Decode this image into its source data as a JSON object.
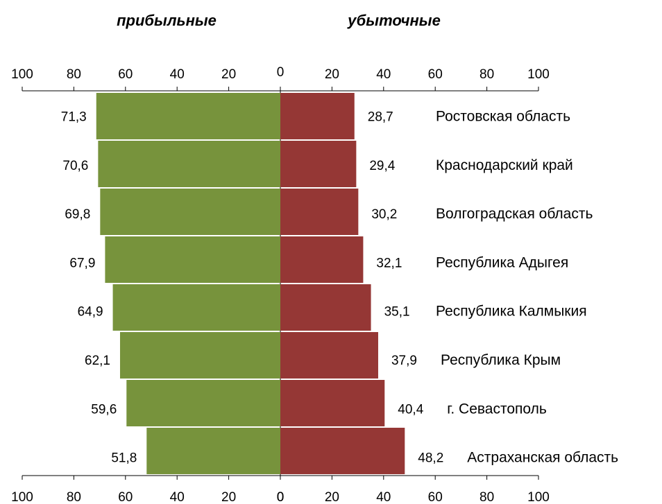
{
  "chart_data": {
    "type": "bar",
    "orientation": "horizontal-diverging",
    "left_header": "прибыльные",
    "right_header": "убыточные",
    "categories": [
      "Ростовская область",
      "Краснодарский край",
      "Волгоградская область",
      "Республика Адыгея",
      "Республика Калмыкия",
      "Республика Крым",
      "г. Севастополь",
      "Астраханская область"
    ],
    "series": [
      {
        "name": "прибыльные",
        "color": "#77933c",
        "values": [
          71.3,
          70.6,
          69.8,
          67.9,
          64.9,
          62.1,
          59.6,
          51.8
        ],
        "labels": [
          "71,3",
          "70,6",
          "69,8",
          "67,9",
          "64,9",
          "62,1",
          "59,6",
          "51,8"
        ]
      },
      {
        "name": "убыточные",
        "color": "#953735",
        "values": [
          28.7,
          29.4,
          30.2,
          32.1,
          35.1,
          37.9,
          40.4,
          48.2
        ],
        "labels": [
          "28,7",
          "29,4",
          "30,2",
          "32,1",
          "35,1",
          "37,9",
          "40,4",
          "48,2"
        ]
      }
    ],
    "axis": {
      "range": [
        0,
        100
      ],
      "left_tick_labels": [
        "100",
        "80",
        "60",
        "40",
        "20",
        "0"
      ],
      "right_tick_labels": [
        "0",
        "20",
        "40",
        "60",
        "80",
        "100"
      ]
    },
    "grid": false
  }
}
